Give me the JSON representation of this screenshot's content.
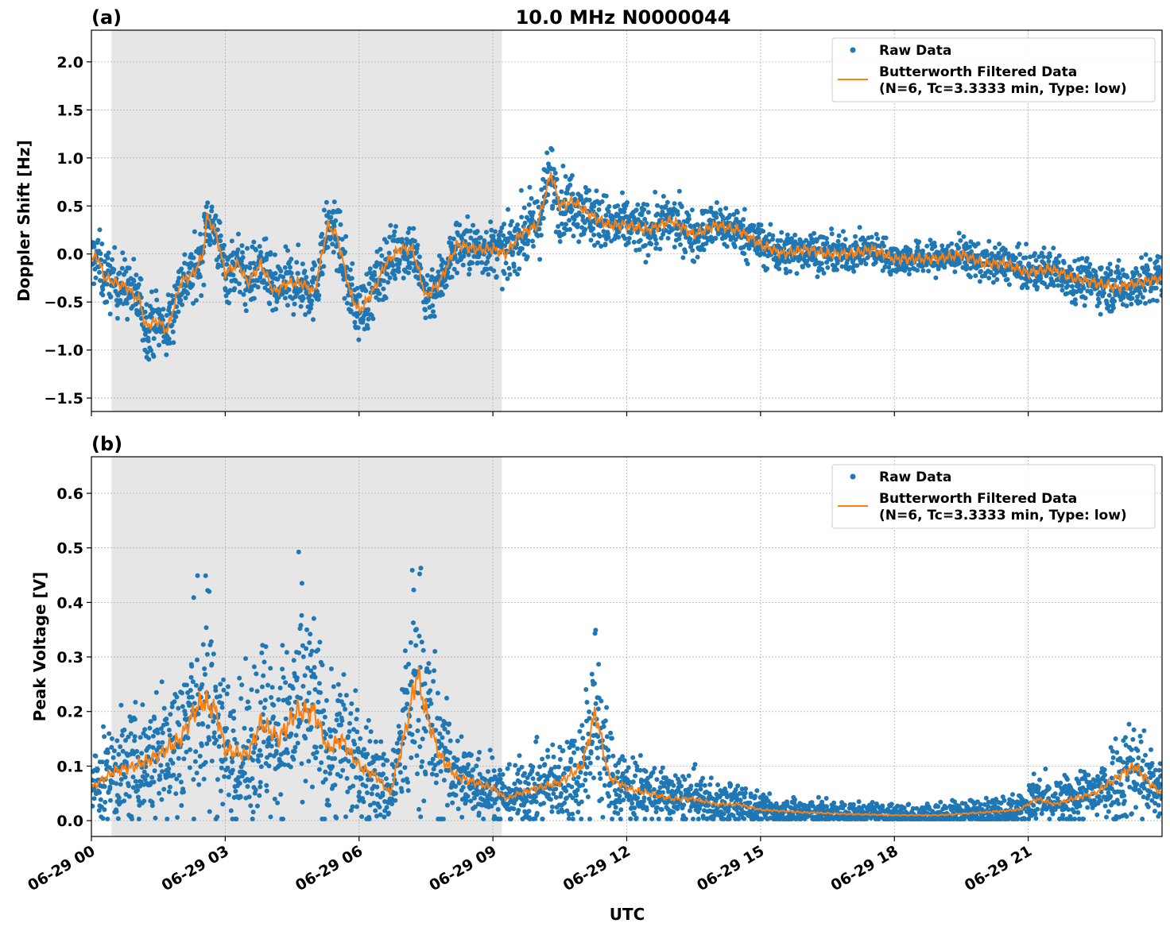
{
  "title": "10.0 MHz N0000044",
  "colors": {
    "raw": "#1f77b4",
    "filtered": "#ff7f0e",
    "shade": "#e6e6e6"
  },
  "chart_data": [
    {
      "type": "scatter",
      "panel_label": "(a)",
      "title": "10.0 MHz N0000044",
      "xlabel": "",
      "ylabel": "Doppler Shift [Hz]",
      "xlim": [
        0,
        24
      ],
      "ylim": [
        -1.64,
        2.33
      ],
      "yticks": [
        -1.5,
        -1.0,
        -0.5,
        0.0,
        0.5,
        1.0,
        1.5,
        2.0
      ],
      "ytick_labels": [
        "−1.5",
        "−1.0",
        "−0.5",
        "0.0",
        "0.5",
        "1.0",
        "1.5",
        "2.0"
      ],
      "grid": true,
      "shaded_hours": [
        0.45,
        9.2
      ],
      "legend": {
        "placement": "top-right",
        "entries": [
          "Raw Data",
          "Butterworth Filtered Data",
          "(N=6, Tc=3.3333 min, Type: low)"
        ]
      },
      "filtered": {
        "x": [
          0,
          0.1,
          0.3,
          0.8,
          1.1,
          1.2,
          1.5,
          1.7,
          2.0,
          2.3,
          2.5,
          2.6,
          2.8,
          3.0,
          3.3,
          3.5,
          3.8,
          4.1,
          4.4,
          4.7,
          5.0,
          5.3,
          5.5,
          5.8,
          6.0,
          6.3,
          6.6,
          6.9,
          7.2,
          7.5,
          7.8,
          8.2,
          8.6,
          9.0,
          9.3,
          9.6,
          10.0,
          10.3,
          10.5,
          10.8,
          11.2,
          11.6,
          12.0,
          12.5,
          13.0,
          13.5,
          14.0,
          14.5,
          15.0,
          15.5,
          16.0,
          16.5,
          17.0,
          17.5,
          18.0,
          18.5,
          19.0,
          19.5,
          20.0,
          20.5,
          21.0,
          21.5,
          22.0,
          22.5,
          23.0,
          23.5,
          24.0
        ],
        "y": [
          -0.1,
          0.0,
          -0.25,
          -0.35,
          -0.5,
          -0.75,
          -0.7,
          -0.8,
          -0.3,
          -0.2,
          0.0,
          0.4,
          0.2,
          -0.2,
          -0.1,
          -0.3,
          -0.1,
          -0.4,
          -0.3,
          -0.3,
          -0.4,
          0.3,
          0.2,
          -0.4,
          -0.6,
          -0.4,
          -0.1,
          0.05,
          0.05,
          -0.45,
          -0.3,
          0.1,
          0.05,
          0.05,
          0.0,
          0.2,
          0.3,
          0.85,
          0.5,
          0.55,
          0.4,
          0.3,
          0.3,
          0.25,
          0.35,
          0.2,
          0.3,
          0.25,
          0.1,
          0.0,
          0.05,
          0.0,
          0.0,
          0.05,
          -0.05,
          -0.05,
          -0.05,
          0.0,
          -0.1,
          -0.1,
          -0.2,
          -0.15,
          -0.25,
          -0.3,
          -0.35,
          -0.3,
          -0.25
        ]
      },
      "raw_spread": {
        "x": [
          0,
          3,
          6,
          9,
          10,
          11,
          12,
          15,
          18,
          21,
          24
        ],
        "half_width": [
          0.35,
          0.35,
          0.35,
          0.3,
          0.4,
          0.35,
          0.3,
          0.25,
          0.18,
          0.22,
          0.3
        ]
      }
    },
    {
      "type": "scatter",
      "panel_label": "(b)",
      "xlabel": "UTC",
      "ylabel": "Peak Voltage [V]",
      "xlim": [
        0,
        24
      ],
      "ylim": [
        -0.029,
        0.667
      ],
      "yticks": [
        0.0,
        0.1,
        0.2,
        0.3,
        0.4,
        0.5,
        0.6
      ],
      "ytick_labels": [
        "0.0",
        "0.1",
        "0.2",
        "0.3",
        "0.4",
        "0.5",
        "0.6"
      ],
      "xticks": [
        0,
        3,
        6,
        9,
        12,
        15,
        18,
        21
      ],
      "xtick_labels": [
        "06-29 00",
        "06-29 03",
        "06-29 06",
        "06-29 09",
        "06-29 12",
        "06-29 15",
        "06-29 18",
        "06-29 21"
      ],
      "grid": true,
      "shaded_hours": [
        0.45,
        9.2
      ],
      "legend": {
        "placement": "top-right",
        "entries": [
          "Raw Data",
          "Butterworth Filtered Data",
          "(N=6, Tc=3.3333 min, Type: low)"
        ]
      },
      "filtered": {
        "x": [
          0,
          0.5,
          1,
          1.5,
          2,
          2.3,
          2.5,
          2.8,
          3.0,
          3.5,
          3.8,
          4.2,
          4.6,
          5.0,
          5.3,
          5.6,
          6.0,
          6.4,
          6.7,
          7.0,
          7.3,
          7.5,
          7.8,
          8.2,
          8.6,
          9.0,
          9.3,
          9.6,
          10.0,
          10.5,
          11.0,
          11.3,
          11.6,
          12.0,
          12.5,
          13.0,
          13.5,
          14.0,
          14.5,
          15,
          16,
          17,
          18,
          19,
          20,
          20.8,
          21.2,
          21.6,
          22,
          22.5,
          23,
          23.4,
          23.7,
          24
        ],
        "y": [
          0.06,
          0.09,
          0.1,
          0.12,
          0.15,
          0.2,
          0.22,
          0.2,
          0.13,
          0.12,
          0.18,
          0.15,
          0.2,
          0.2,
          0.13,
          0.15,
          0.1,
          0.08,
          0.05,
          0.15,
          0.27,
          0.2,
          0.12,
          0.08,
          0.07,
          0.06,
          0.04,
          0.05,
          0.06,
          0.07,
          0.1,
          0.2,
          0.08,
          0.06,
          0.05,
          0.04,
          0.04,
          0.03,
          0.03,
          0.02,
          0.015,
          0.012,
          0.01,
          0.01,
          0.015,
          0.02,
          0.04,
          0.03,
          0.04,
          0.05,
          0.08,
          0.1,
          0.07,
          0.05
        ]
      }
    }
  ]
}
